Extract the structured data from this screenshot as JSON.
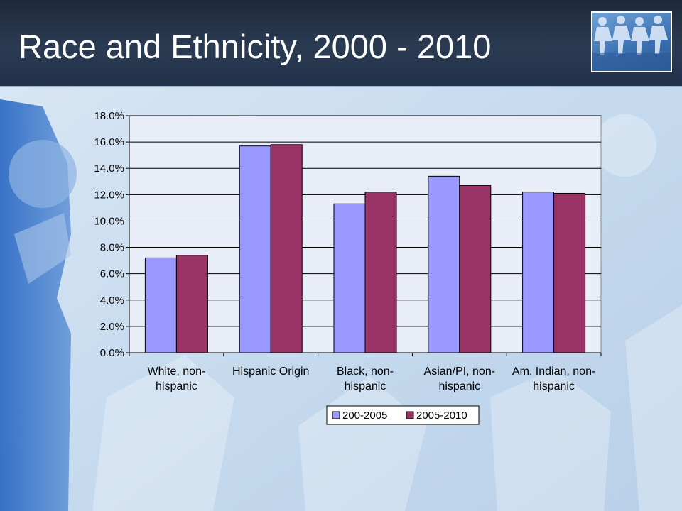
{
  "slide": {
    "title": "Race and Ethnicity, 2000 - 2010",
    "logo_icon": "people-chain-icon"
  },
  "colors": {
    "title_bar": "#25344a",
    "title_text": "#ffffff",
    "plot_background": "#e8edf7",
    "series_1": "#9999ff",
    "series_2": "#993366"
  },
  "chart_data": {
    "type": "bar",
    "title": "",
    "xlabel": "",
    "ylabel": "",
    "categories": [
      [
        "White, non-",
        "hispanic"
      ],
      [
        "Hispanic Origin"
      ],
      [
        "Black, non-",
        "hispanic"
      ],
      [
        "Asian/PI, non-",
        "hispanic"
      ],
      [
        "Am. Indian, non-",
        "hispanic"
      ]
    ],
    "series": [
      {
        "name": "200-2005",
        "color": "#9999ff",
        "values": [
          7.2,
          15.7,
          11.3,
          13.4,
          12.2
        ]
      },
      {
        "name": "2005-2010",
        "color": "#993366",
        "values": [
          7.4,
          15.8,
          12.2,
          12.7,
          12.1
        ]
      }
    ],
    "ylim": [
      0,
      18
    ],
    "ytick_step": 2,
    "ytick_labels": [
      "0.0%",
      "2.0%",
      "4.0%",
      "6.0%",
      "8.0%",
      "10.0%",
      "12.0%",
      "14.0%",
      "16.0%",
      "18.0%"
    ],
    "grid": true,
    "legend_position": "bottom"
  }
}
